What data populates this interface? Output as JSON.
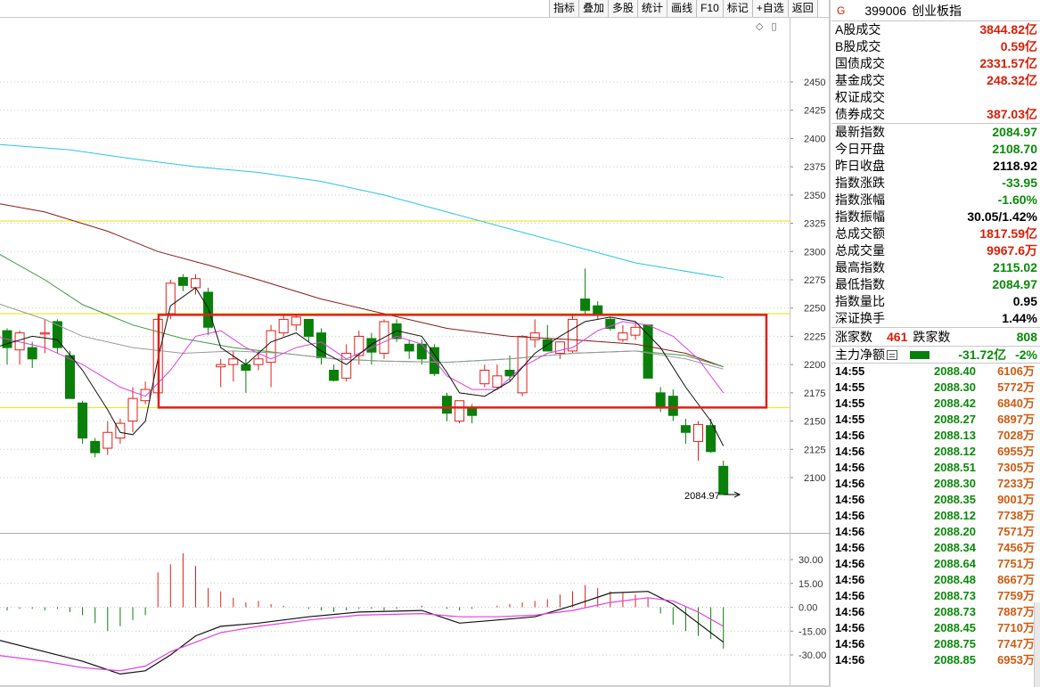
{
  "toolbar": {
    "buttons": [
      "指标",
      "叠加",
      "多股",
      "统计",
      "画线",
      "F10",
      "标记",
      "+自选",
      "返回"
    ]
  },
  "chart_controls": {
    "diamond_icon": "◇",
    "menu_icon": "▯"
  },
  "chart_data": {
    "type": "candlestick",
    "price_axis": {
      "ticks": [
        "2450",
        "2425",
        "2400",
        "2375",
        "2350",
        "2325",
        "2300",
        "2275",
        "2250",
        "2225",
        "2200",
        "2175",
        "2150",
        "2125",
        "2100"
      ]
    },
    "last_price_label": "2084.97",
    "macd_axis": {
      "ticks": [
        "30.00",
        "15.00",
        "0.00",
        "-15.00",
        "-30.00"
      ]
    },
    "colors": {
      "up": "#e0201a",
      "down": "#0a7f0a",
      "ma_cyan": "#29c5e6",
      "ma_darkred": "#8b1a1a",
      "ma_green": "#3a9a3a",
      "ma_gray": "#9a9a9a",
      "ma_magenta": "#e040e0",
      "ma_black": "#111111",
      "box": "#e0201a",
      "hline": "#e6e600"
    }
  },
  "info": {
    "header_mark": "G",
    "code": "399006",
    "name": "创业板指",
    "turnover": [
      {
        "label": "A股成交",
        "value": "3844.82亿"
      },
      {
        "label": "B股成交",
        "value": "0.59亿"
      },
      {
        "label": "国债成交",
        "value": "2331.57亿"
      },
      {
        "label": "基金成交",
        "value": "248.32亿"
      },
      {
        "label": "权证成交",
        "value": ""
      },
      {
        "label": "债券成交",
        "value": "387.03亿"
      }
    ],
    "stats": [
      {
        "label": "最新指数",
        "value": "2084.97",
        "color": "green"
      },
      {
        "label": "今日开盘",
        "value": "2108.70",
        "color": "green"
      },
      {
        "label": "昨日收盘",
        "value": "2118.92",
        "color": "black"
      },
      {
        "label": "指数涨跌",
        "value": "-33.95",
        "color": "green"
      },
      {
        "label": "指数涨幅",
        "value": "-1.60%",
        "color": "green"
      },
      {
        "label": "指数振幅",
        "value": "30.05/1.42%",
        "color": "black"
      },
      {
        "label": "总成交额",
        "value": "1817.59亿",
        "color": "red"
      },
      {
        "label": "总成交量",
        "value": "9967.6万",
        "color": "red"
      },
      {
        "label": "最高指数",
        "value": "2115.02",
        "color": "green"
      },
      {
        "label": "最低指数",
        "value": "2084.97",
        "color": "green"
      },
      {
        "label": "指数量比",
        "value": "0.95",
        "color": "black"
      },
      {
        "label": "深证换手",
        "value": "1.44%",
        "color": "black"
      }
    ],
    "updown": {
      "up_label": "涨家数",
      "up_count": "461",
      "down_label": "跌家数",
      "down_count": "808"
    },
    "flow": {
      "label": "主力净额",
      "value": "-31.72亿",
      "pct": "-2%"
    },
    "ticks": [
      {
        "time": "14:55",
        "price": "2088.40",
        "vol": "6106万"
      },
      {
        "time": "14:55",
        "price": "2088.30",
        "vol": "5772万"
      },
      {
        "time": "14:55",
        "price": "2088.42",
        "vol": "6840万"
      },
      {
        "time": "14:55",
        "price": "2088.27",
        "vol": "6897万"
      },
      {
        "time": "14:56",
        "price": "2088.13",
        "vol": "7028万"
      },
      {
        "time": "14:56",
        "price": "2088.12",
        "vol": "6955万"
      },
      {
        "time": "14:56",
        "price": "2088.51",
        "vol": "7305万"
      },
      {
        "time": "14:56",
        "price": "2088.30",
        "vol": "7233万"
      },
      {
        "time": "14:56",
        "price": "2088.35",
        "vol": "9001万"
      },
      {
        "time": "14:56",
        "price": "2088.12",
        "vol": "7738万"
      },
      {
        "time": "14:56",
        "price": "2088.20",
        "vol": "7571万"
      },
      {
        "time": "14:56",
        "price": "2088.34",
        "vol": "7456万"
      },
      {
        "time": "14:56",
        "price": "2088.64",
        "vol": "7751万"
      },
      {
        "time": "14:56",
        "price": "2088.48",
        "vol": "8667万"
      },
      {
        "time": "14:56",
        "price": "2088.73",
        "vol": "7759万"
      },
      {
        "time": "14:56",
        "price": "2088.73",
        "vol": "7887万"
      },
      {
        "time": "14:56",
        "price": "2088.45",
        "vol": "7710万"
      },
      {
        "time": "14:56",
        "price": "2088.75",
        "vol": "7747万"
      },
      {
        "time": "14:56",
        "price": "2088.85",
        "vol": "6953万"
      }
    ]
  }
}
